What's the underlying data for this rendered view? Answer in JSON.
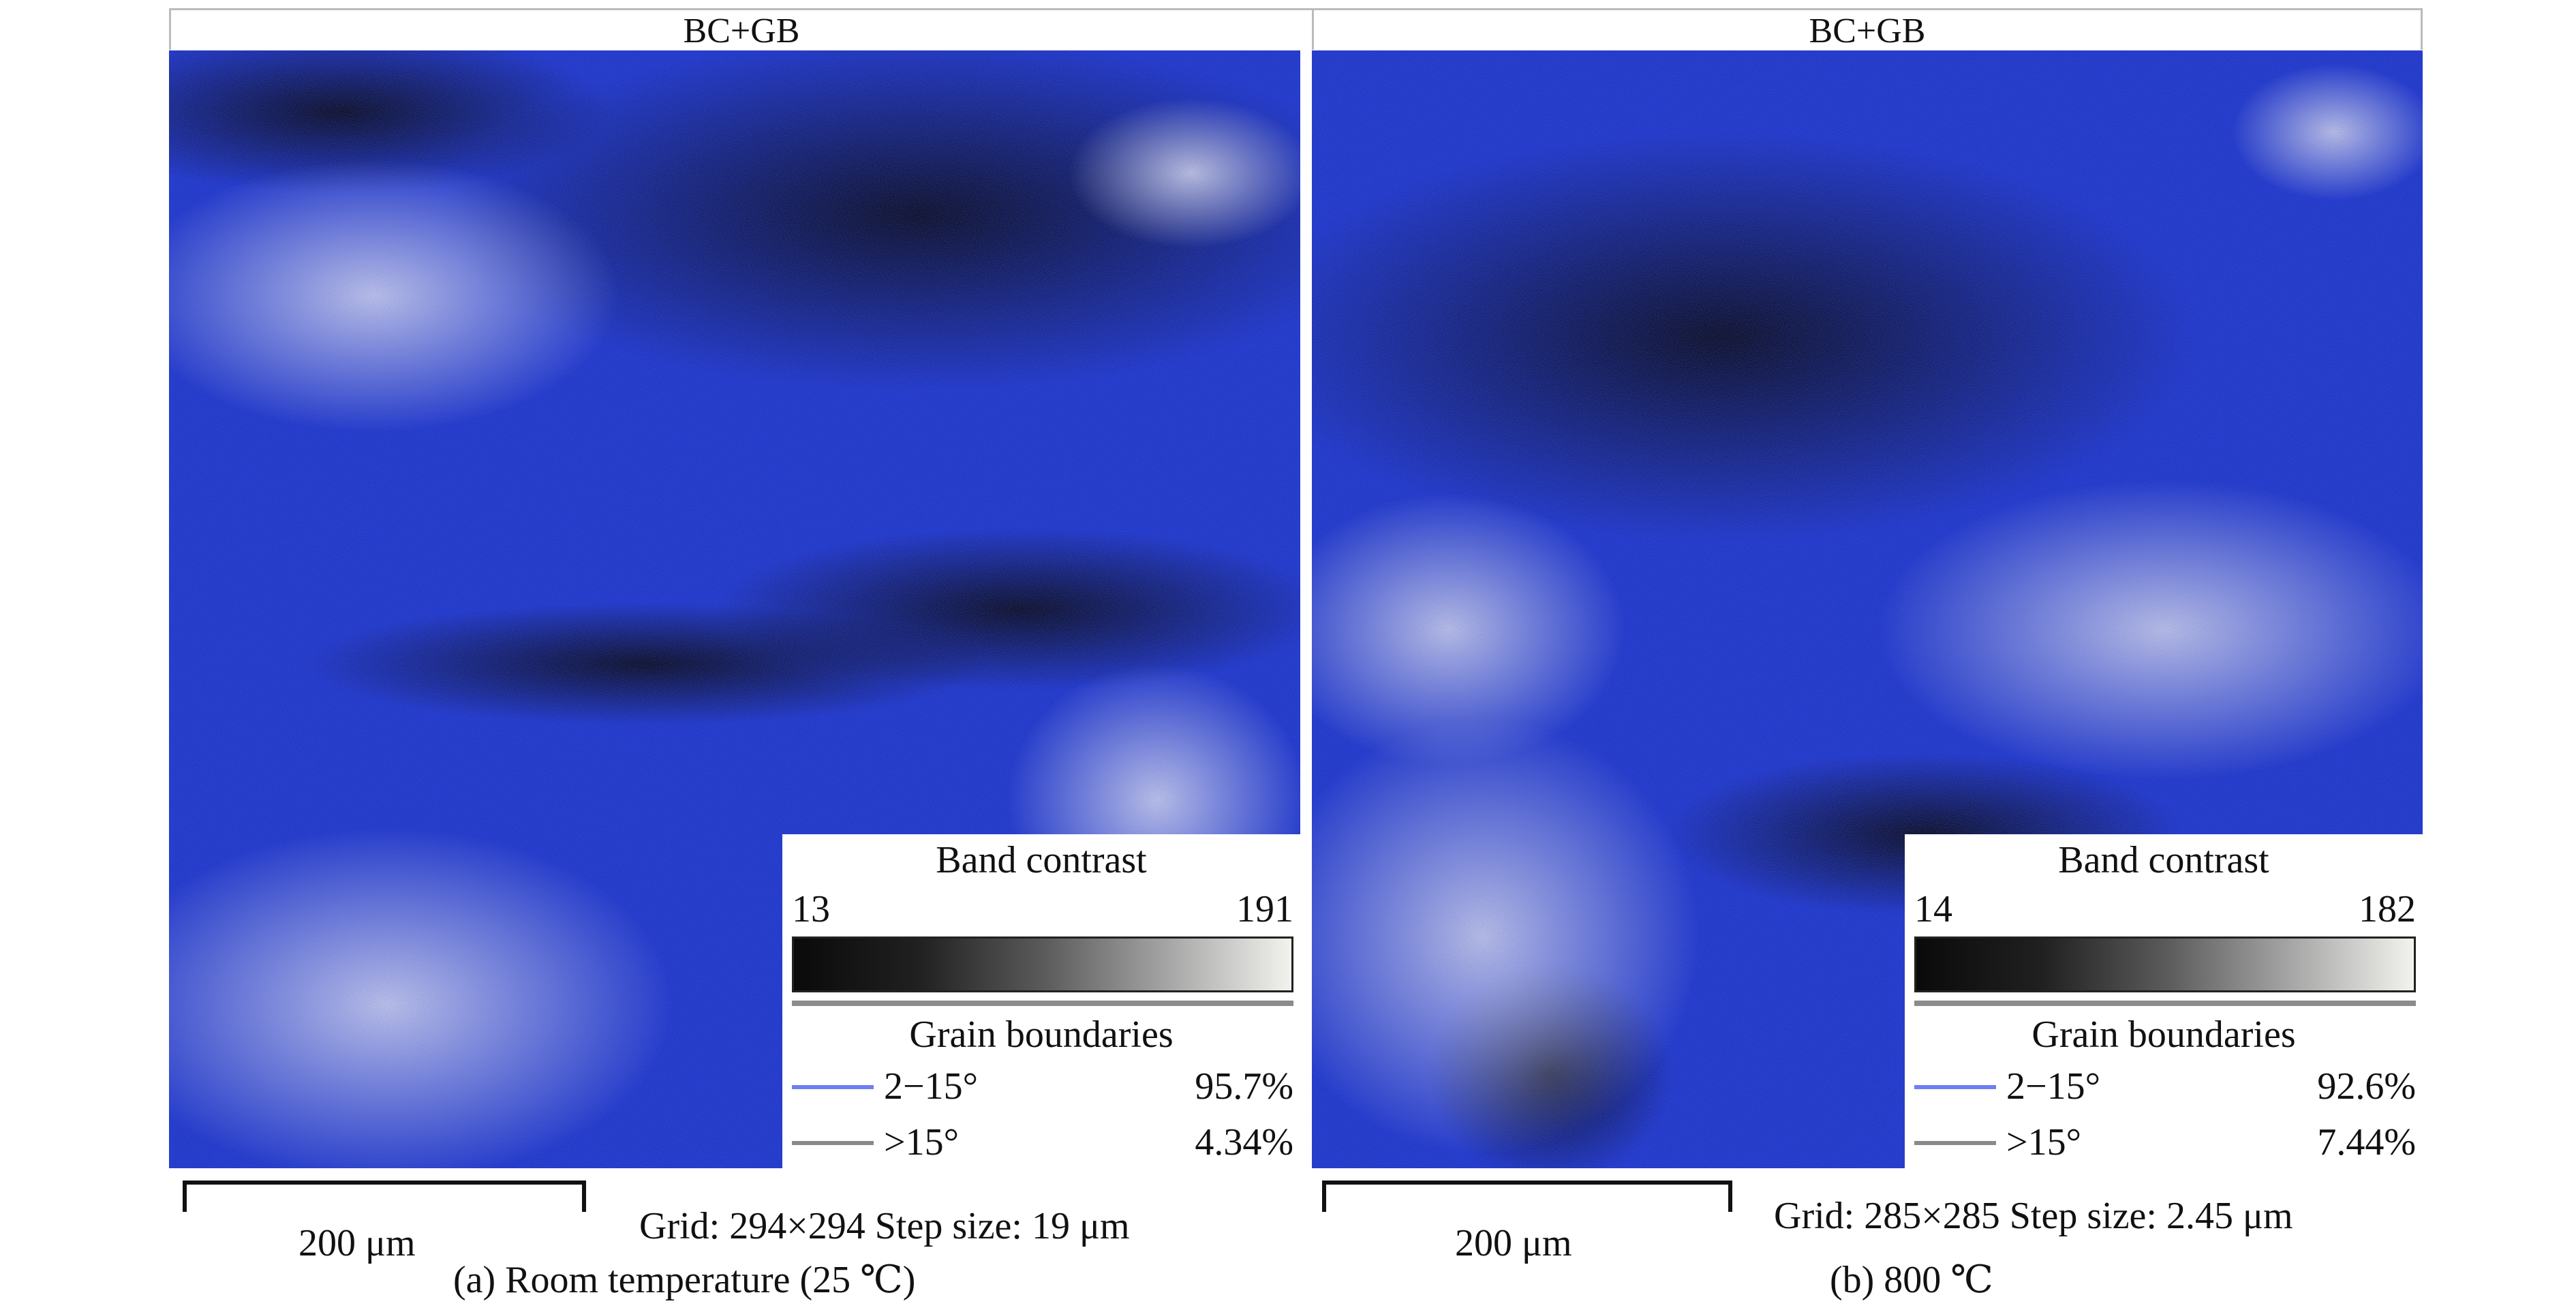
{
  "panels": [
    {
      "id": "a",
      "header": "BC+GB",
      "legend": {
        "band_contrast_title": "Band contrast",
        "min": "13",
        "max": "191",
        "grain_boundaries_title": "Grain boundaries",
        "rows": [
          {
            "range": "2−15°",
            "percent": "95.7%",
            "color": "#6f7ff0"
          },
          {
            "range": ">15°",
            "percent": "4.34%",
            "color": "#8a8a8a"
          }
        ]
      },
      "scale_label": "200 μm",
      "grid_info": "Grid: 294×294  Step size: 19 μm",
      "caption": "(a) Room temperature (25 ℃)"
    },
    {
      "id": "b",
      "header": "BC+GB",
      "legend": {
        "band_contrast_title": "Band contrast",
        "min": "14",
        "max": "182",
        "grain_boundaries_title": "Grain boundaries",
        "rows": [
          {
            "range": "2−15°",
            "percent": "92.6%",
            "color": "#6f7ff0"
          },
          {
            "range": ">15°",
            "percent": "7.44%",
            "color": "#8a8a8a"
          }
        ]
      },
      "scale_label": "200 μm",
      "grid_info": "Grid: 285×285  Step size: 2.45 μm",
      "caption": "(b) 800 ℃"
    }
  ],
  "colors": {
    "map_blue": "#1c2fb8",
    "map_dark": "#0b0b14",
    "map_light": "#d6d6e0"
  }
}
